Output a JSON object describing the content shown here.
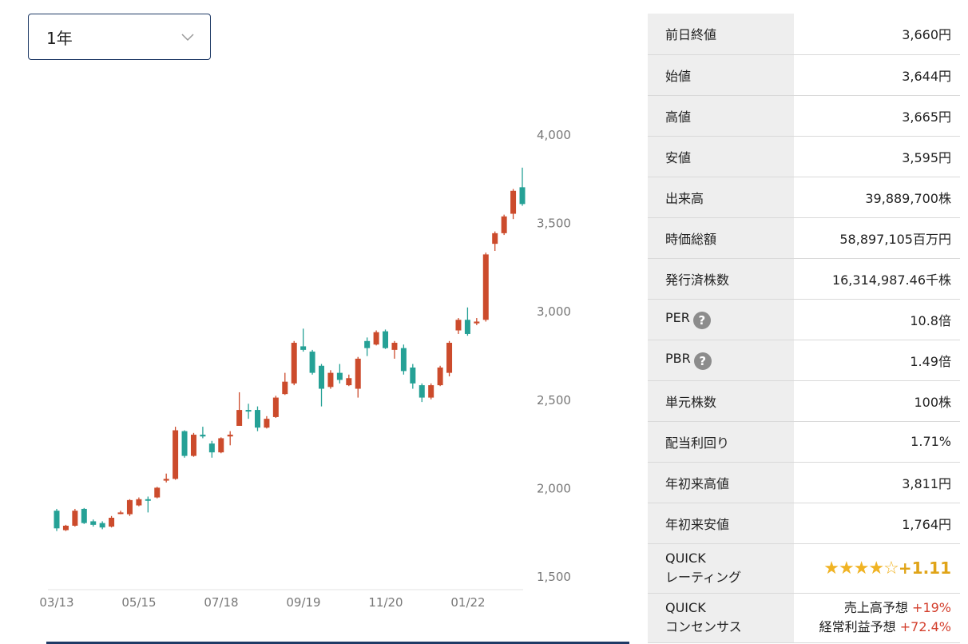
{
  "period": {
    "selected": "1年",
    "icon": "chevron-down-icon"
  },
  "chart_data": {
    "type": "candlestick",
    "x_tick_labels": [
      "03/13",
      "05/15",
      "07/18",
      "09/19",
      "11/20",
      "01/22"
    ],
    "y_ticks": [
      1500,
      2000,
      2500,
      3000,
      3500,
      4000
    ],
    "y_tick_labels": [
      "1,500",
      "2,000",
      "2,500",
      "3,000",
      "3,500",
      "4,000"
    ],
    "ylim": [
      1450,
      4000
    ],
    "colors": {
      "up": "#cc4b2c",
      "down": "#25a196"
    },
    "candles": [
      {
        "o": 1870,
        "c": 1770,
        "h": 1880,
        "l": 1755
      },
      {
        "o": 1760,
        "c": 1785,
        "h": 1790,
        "l": 1755
      },
      {
        "o": 1785,
        "c": 1870,
        "h": 1880,
        "l": 1780
      },
      {
        "o": 1880,
        "c": 1800,
        "h": 1885,
        "l": 1795
      },
      {
        "o": 1810,
        "c": 1790,
        "h": 1820,
        "l": 1780
      },
      {
        "o": 1800,
        "c": 1775,
        "h": 1810,
        "l": 1765
      },
      {
        "o": 1780,
        "c": 1830,
        "h": 1840,
        "l": 1775
      },
      {
        "o": 1855,
        "c": 1860,
        "h": 1870,
        "l": 1850
      },
      {
        "o": 1850,
        "c": 1930,
        "h": 1935,
        "l": 1840
      },
      {
        "o": 1900,
        "c": 1935,
        "h": 1945,
        "l": 1895
      },
      {
        "o": 1935,
        "c": 1930,
        "h": 1950,
        "l": 1860
      },
      {
        "o": 1945,
        "c": 2000,
        "h": 2005,
        "l": 1940
      },
      {
        "o": 2040,
        "c": 2050,
        "h": 2080,
        "l": 2030
      },
      {
        "o": 2050,
        "c": 2325,
        "h": 2345,
        "l": 2045
      },
      {
        "o": 2320,
        "c": 2180,
        "h": 2325,
        "l": 2170
      },
      {
        "o": 2180,
        "c": 2300,
        "h": 2310,
        "l": 2175
      },
      {
        "o": 2300,
        "c": 2290,
        "h": 2345,
        "l": 2280
      },
      {
        "o": 2250,
        "c": 2200,
        "h": 2265,
        "l": 2170
      },
      {
        "o": 2200,
        "c": 2280,
        "h": 2285,
        "l": 2195
      },
      {
        "o": 2290,
        "c": 2300,
        "h": 2320,
        "l": 2240
      },
      {
        "o": 2350,
        "c": 2440,
        "h": 2540,
        "l": 2350
      },
      {
        "o": 2440,
        "c": 2435,
        "h": 2475,
        "l": 2390
      },
      {
        "o": 2440,
        "c": 2340,
        "h": 2460,
        "l": 2320
      },
      {
        "o": 2340,
        "c": 2390,
        "h": 2405,
        "l": 2335
      },
      {
        "o": 2400,
        "c": 2510,
        "h": 2520,
        "l": 2395
      },
      {
        "o": 2530,
        "c": 2600,
        "h": 2650,
        "l": 2525
      },
      {
        "o": 2590,
        "c": 2820,
        "h": 2830,
        "l": 2580
      },
      {
        "o": 2800,
        "c": 2780,
        "h": 2900,
        "l": 2770
      },
      {
        "o": 2770,
        "c": 2650,
        "h": 2780,
        "l": 2640
      },
      {
        "o": 2690,
        "c": 2560,
        "h": 2700,
        "l": 2460
      },
      {
        "o": 2570,
        "c": 2650,
        "h": 2665,
        "l": 2560
      },
      {
        "o": 2650,
        "c": 2610,
        "h": 2700,
        "l": 2590
      },
      {
        "o": 2580,
        "c": 2620,
        "h": 2640,
        "l": 2575
      },
      {
        "o": 2560,
        "c": 2730,
        "h": 2740,
        "l": 2510
      },
      {
        "o": 2830,
        "c": 2790,
        "h": 2850,
        "l": 2745
      },
      {
        "o": 2810,
        "c": 2880,
        "h": 2890,
        "l": 2805
      },
      {
        "o": 2885,
        "c": 2790,
        "h": 2895,
        "l": 2785
      },
      {
        "o": 2780,
        "c": 2820,
        "h": 2830,
        "l": 2730
      },
      {
        "o": 2790,
        "c": 2660,
        "h": 2810,
        "l": 2640
      },
      {
        "o": 2680,
        "c": 2590,
        "h": 2700,
        "l": 2560
      },
      {
        "o": 2580,
        "c": 2510,
        "h": 2590,
        "l": 2485
      },
      {
        "o": 2510,
        "c": 2580,
        "h": 2590,
        "l": 2500
      },
      {
        "o": 2580,
        "c": 2680,
        "h": 2690,
        "l": 2575
      },
      {
        "o": 2650,
        "c": 2820,
        "h": 2830,
        "l": 2630
      },
      {
        "o": 2890,
        "c": 2950,
        "h": 2960,
        "l": 2870
      },
      {
        "o": 2950,
        "c": 2870,
        "h": 3020,
        "l": 2860
      },
      {
        "o": 2930,
        "c": 2940,
        "h": 2960,
        "l": 2920
      },
      {
        "o": 2950,
        "c": 3320,
        "h": 3330,
        "l": 2940
      },
      {
        "o": 3380,
        "c": 3440,
        "h": 3450,
        "l": 3340
      },
      {
        "o": 3440,
        "c": 3535,
        "h": 3545,
        "l": 3430
      },
      {
        "o": 3550,
        "c": 3680,
        "h": 3690,
        "l": 3520
      },
      {
        "o": 3700,
        "c": 3605,
        "h": 3811,
        "l": 3595
      }
    ]
  },
  "stats": [
    {
      "label": "前日終値",
      "value": "3,660円"
    },
    {
      "label": "始値",
      "value": "3,644円"
    },
    {
      "label": "高値",
      "value": "3,665円"
    },
    {
      "label": "安値",
      "value": "3,595円"
    },
    {
      "label": "出来高",
      "value": "39,889,700株"
    },
    {
      "label": "時価総額",
      "value": "58,897,105百万円"
    },
    {
      "label": "発行済株数",
      "value": "16,314,987.46千株"
    },
    {
      "label": "PER",
      "value": "10.8倍",
      "help": "?"
    },
    {
      "label": "PBR",
      "value": "1.49倍",
      "help": "?"
    },
    {
      "label": "単元株数",
      "value": "100株"
    },
    {
      "label": "配当利回り",
      "value": "1.71%"
    },
    {
      "label": "年初来高値",
      "value": "3,811円"
    },
    {
      "label": "年初来安値",
      "value": "1,764円"
    }
  ],
  "quick_rating": {
    "label_line1": "QUICK",
    "label_line2": "レーティング",
    "stars_filled": "★★★★",
    "stars_empty": "☆",
    "rating": 4,
    "max_rating": 5,
    "value": "+1.11"
  },
  "quick_consensus": {
    "label_line1": "QUICK",
    "label_line2": "コンセンサス",
    "line1_label": "売上高予想",
    "line1_value": "+19%",
    "line2_label": "経常利益予想",
    "line2_value": "+72.4%"
  }
}
